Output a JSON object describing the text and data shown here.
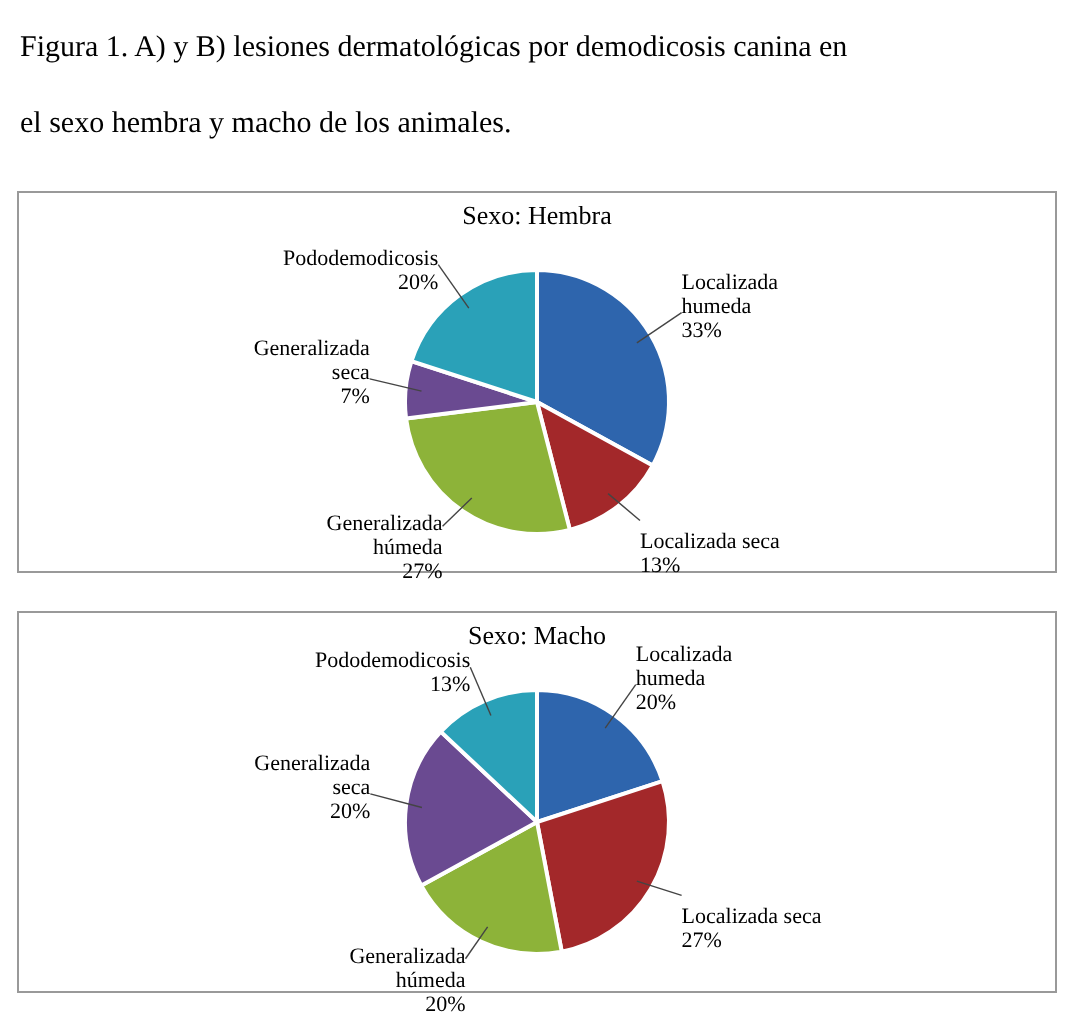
{
  "chart_data": [
    {
      "type": "pie",
      "title": "Sexo: Hembra",
      "annotations": [
        "Figura 1. A) y B) lesiones dermatológicas por demodicosis canina en el sexo hembra y macho de los animales."
      ],
      "categories": [
        "Localizada humeda",
        "Localizada seca",
        "Generalizada húmeda",
        "Generalizada seca",
        "Pododemodicosis"
      ],
      "values": [
        33,
        13,
        27,
        7,
        20
      ],
      "value_labels": [
        "33%",
        "13%",
        "27%",
        "7%",
        "20%"
      ],
      "colors": [
        "#2e65ad",
        "#a3282a",
        "#8db339",
        "#6a4a91",
        "#2aa1b8"
      ]
    },
    {
      "type": "pie",
      "title": "Sexo: Macho",
      "categories": [
        "Localizada humeda",
        "Localizada seca",
        "Generalizada húmeda",
        "Generalizada seca",
        "Pododemodicosis"
      ],
      "values": [
        20,
        27,
        20,
        20,
        13
      ],
      "value_labels": [
        "20%",
        "27%",
        "20%",
        "20%",
        "13%"
      ],
      "colors": [
        "#2e65ad",
        "#a3282a",
        "#8db339",
        "#6a4a91",
        "#2aa1b8"
      ]
    }
  ]
}
